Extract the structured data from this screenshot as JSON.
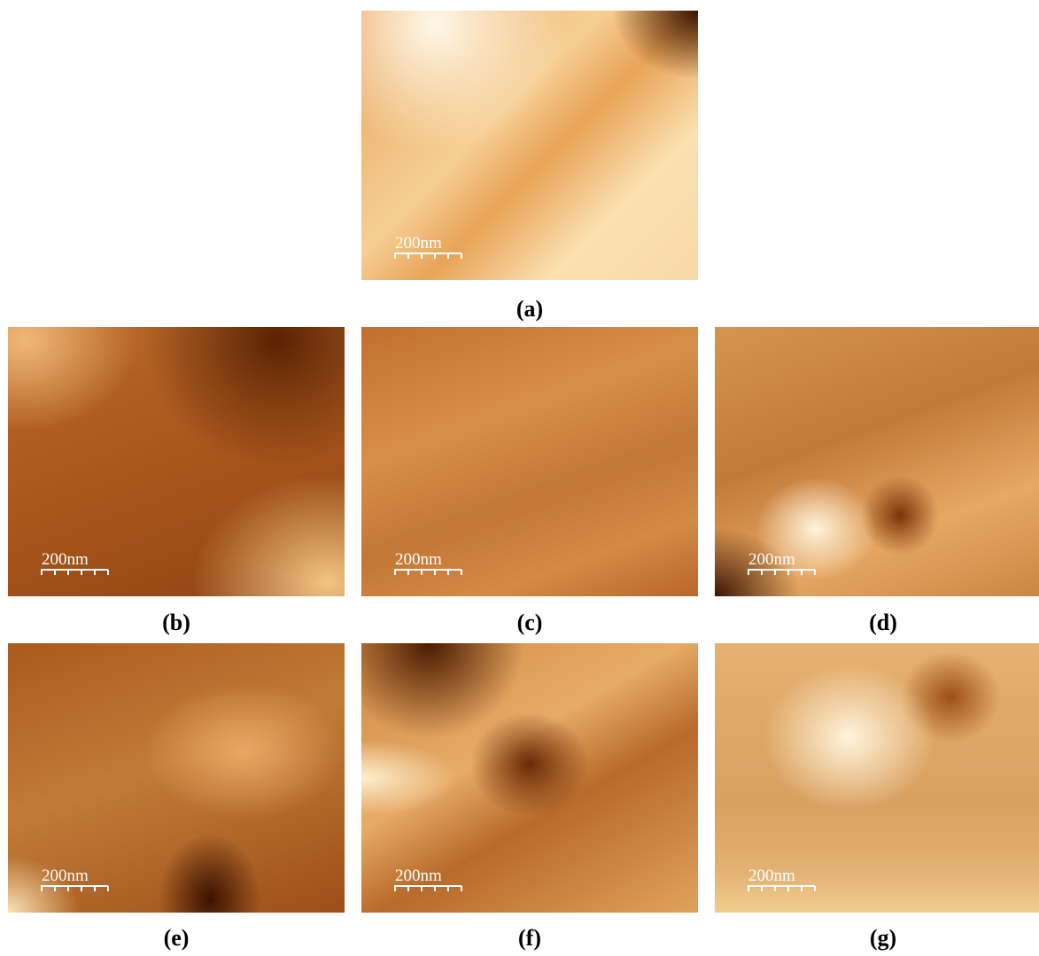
{
  "panels": [
    {
      "label": "(a)",
      "scale_bar": "200nm"
    },
    {
      "label": "(b)",
      "scale_bar": "200nm"
    },
    {
      "label": "(c)",
      "scale_bar": "200nm"
    },
    {
      "label": "(d)",
      "scale_bar": "200nm"
    },
    {
      "label": "(e)",
      "scale_bar": "200nm"
    },
    {
      "label": "(f)",
      "scale_bar": "200nm"
    },
    {
      "label": "(g)",
      "scale_bar": "200nm"
    }
  ]
}
